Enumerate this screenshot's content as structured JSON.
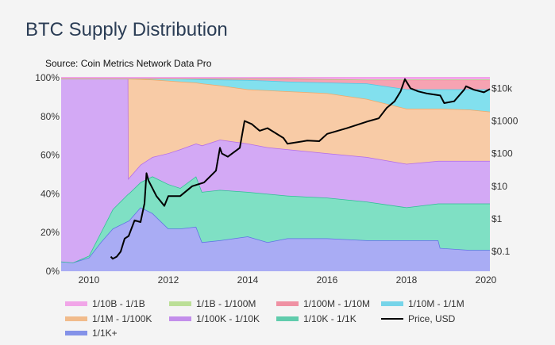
{
  "header": {
    "title": "BTC Supply Distribution",
    "source": "Source: Coin Metrics Network Data Pro"
  },
  "chart_data": {
    "type": "area",
    "stacked": true,
    "xlim": [
      2009.3,
      2020.1
    ],
    "ylim": [
      0,
      100
    ],
    "y2_scale": "log",
    "y2lim": [
      0.025,
      21000
    ],
    "x_ticks": [
      "2010",
      "2012",
      "2014",
      "2016",
      "2018",
      "2020"
    ],
    "x_tick_values": [
      2010,
      2012,
      2014,
      2016,
      2018,
      2020
    ],
    "y_ticks": [
      "0%",
      "20%",
      "40%",
      "60%",
      "80%",
      "100%"
    ],
    "y_tick_values": [
      0,
      20,
      40,
      60,
      80,
      100
    ],
    "y2_ticks": [
      "$0.1",
      "$1",
      "$10",
      "$100",
      "$1000",
      "$10k"
    ],
    "y2_tick_values": [
      0.1,
      1,
      10,
      100,
      1000,
      10000
    ],
    "grid": false,
    "legend_position": "bottom",
    "x": [
      2009.3,
      2009.6,
      2010.0,
      2010.3,
      2010.6,
      2010.99,
      2011.0,
      2011.3,
      2011.6,
      2012.0,
      2012.3,
      2012.7,
      2012.85,
      2013.3,
      2014.0,
      2014.5,
      2015.0,
      2016.0,
      2017.0,
      2018.0,
      2018.8,
      2018.85,
      2019.6,
      2020.1
    ],
    "series": [
      {
        "name": "1/1K+",
        "color": "#a9acf4",
        "line": "#5f72e4",
        "values": [
          5,
          4.5,
          7,
          15,
          22,
          26,
          26,
          33,
          30,
          22,
          22,
          23,
          15,
          16,
          18,
          15,
          17,
          17,
          16,
          16,
          16,
          12,
          11,
          11
        ]
      },
      {
        "name": "1/10K - 1/1K",
        "color": "#7fe0c4",
        "line": "#2fbf94",
        "values": [
          0,
          0,
          1,
          5,
          10,
          14,
          14,
          13,
          19,
          23,
          21,
          26,
          26,
          26,
          23,
          25,
          22,
          21,
          20,
          17,
          19,
          23,
          24,
          24
        ]
      },
      {
        "name": "1/100K - 1/10K",
        "color": "#d3a9f5",
        "line": "#b36ce8",
        "values": [
          94.5,
          95,
          91.5,
          79.5,
          67.5,
          59.5,
          8,
          9,
          10,
          16,
          20,
          17,
          24,
          26,
          25,
          24,
          24,
          23,
          23,
          22.5,
          22,
          22,
          22,
          22
        ]
      },
      {
        "name": "1/1M - 1/100K",
        "color": "#f8cba6",
        "line": "#f0a868",
        "values": [
          0,
          0,
          0,
          0,
          0,
          0,
          51.5,
          44.3,
          40,
          37.5,
          35,
          31.5,
          32,
          28,
          28,
          29.5,
          30,
          31,
          30,
          28.5,
          27,
          27,
          26.5,
          25.5
        ]
      },
      {
        "name": "1/10M - 1/1M",
        "color": "#82e0ee",
        "line": "#4cc9e6",
        "values": [
          0,
          0,
          0,
          0,
          0,
          0,
          0,
          0.2,
          0.5,
          1,
          1.5,
          1.8,
          2.2,
          3,
          4.8,
          5,
          5,
          5.5,
          8,
          10,
          10,
          10,
          10.5,
          11.5
        ]
      },
      {
        "name": "1/100M - 1/10M",
        "color": "#f6a3b2",
        "line": "#ee7088",
        "values": [
          0,
          0,
          0,
          0,
          0,
          0,
          0,
          0,
          0,
          0,
          0,
          0.2,
          0.3,
          0.5,
          0.7,
          1,
          1.5,
          1.7,
          2,
          5,
          5,
          5,
          5,
          5
        ]
      },
      {
        "name": "1/1B - 1/100M",
        "color": "#c8e9a0",
        "line": "#a8d878",
        "values": [
          0.1,
          0.1,
          0.1,
          0.1,
          0.1,
          0.1,
          0.1,
          0.1,
          0.1,
          0.1,
          0.1,
          0.1,
          0.1,
          0.1,
          0.1,
          0.1,
          0.1,
          0.1,
          0.1,
          0.1,
          0.1,
          0.1,
          0.1,
          0.1
        ]
      },
      {
        "name": "1/10B - 1/1B",
        "color": "#f7b6f0",
        "line": "#f08ce4",
        "values": [
          0.4,
          0.4,
          0.4,
          0.4,
          0.4,
          0.4,
          0.4,
          0.4,
          0.4,
          0.4,
          0.4,
          0.4,
          0.4,
          0.4,
          0.4,
          0.4,
          0.4,
          0.7,
          0.9,
          0.9,
          0.9,
          0.9,
          0.9,
          0.9
        ]
      }
    ],
    "price": {
      "name": "Price, USD",
      "color": "#000000",
      "x": [
        2010.55,
        2010.6,
        2010.7,
        2010.8,
        2010.9,
        2011.0,
        2011.15,
        2011.3,
        2011.4,
        2011.45,
        2011.5,
        2011.7,
        2011.9,
        2012.0,
        2012.3,
        2012.6,
        2012.9,
        2013.2,
        2013.3,
        2013.35,
        2013.5,
        2013.8,
        2013.92,
        2014.1,
        2014.3,
        2014.5,
        2014.9,
        2015.0,
        2015.5,
        2015.8,
        2016.0,
        2016.5,
        2017.0,
        2017.3,
        2017.5,
        2017.7,
        2017.85,
        2017.96,
        2018.1,
        2018.3,
        2018.5,
        2018.85,
        2018.95,
        2019.2,
        2019.45,
        2019.5,
        2019.7,
        2019.95,
        2020.1
      ],
      "values": [
        0.07,
        0.06,
        0.07,
        0.1,
        0.25,
        0.3,
        0.9,
        0.8,
        3,
        25,
        15,
        5,
        2.5,
        5,
        5,
        10,
        13,
        30,
        150,
        100,
        80,
        150,
        1000,
        800,
        500,
        600,
        300,
        200,
        250,
        240,
        400,
        600,
        950,
        1200,
        2500,
        4000,
        8000,
        19000,
        10000,
        8000,
        7000,
        6000,
        3500,
        4000,
        9000,
        11500,
        9000,
        7500,
        9500
      ]
    },
    "legend": [
      "1/10B - 1/1B",
      "1/1B - 1/100M",
      "1/100M - 1/10M",
      "1/10M - 1/1M",
      "1/1M - 1/100K",
      "1/100K - 1/10K",
      "1/10K - 1/1K",
      "Price, USD",
      "1/1K+"
    ]
  }
}
